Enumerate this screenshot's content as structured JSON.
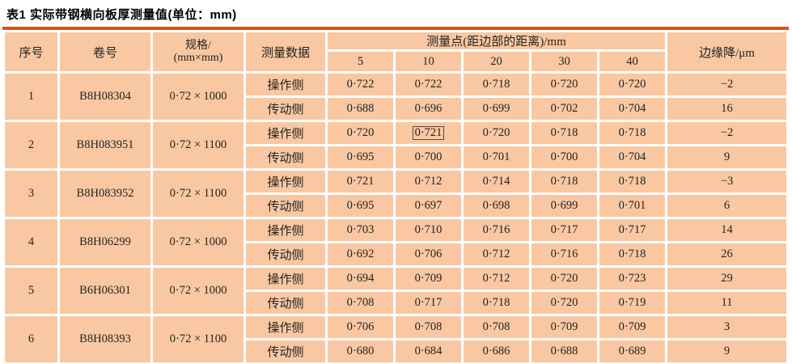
{
  "title": "表1  实际带钢横向板厚测量值(单位：mm)",
  "colors": {
    "cell_background": "#f9c8a2",
    "top_rule": "#d2571c",
    "bottom_rule": "#ed6c1e",
    "separator": "#ffffff",
    "text": "#222222"
  },
  "table": {
    "headers": {
      "serial": "序号",
      "coil": "卷号",
      "spec_line1": "规格/",
      "spec_line2": "(mm×mm)",
      "measure_data": "测量数据",
      "points_group": "测量点(距边部的距离)/mm",
      "points": [
        "5",
        "10",
        "20",
        "30",
        "40"
      ],
      "edge_drop": "边缘降/μm"
    },
    "rows": [
      {
        "serial": "1",
        "coil": "B8H08304",
        "spec": "0·72 × 1000",
        "sides": [
          {
            "label": "操作侧",
            "values": [
              "0·722",
              "0·722",
              "0·718",
              "0·720",
              "0·720"
            ],
            "boxed_col": -1,
            "edge_drop": "−2"
          },
          {
            "label": "传动侧",
            "values": [
              "0·688",
              "0·696",
              "0·699",
              "0·702",
              "0·704"
            ],
            "boxed_col": -1,
            "edge_drop": "16"
          }
        ]
      },
      {
        "serial": "2",
        "coil": "B8H083951",
        "spec": "0·72 × 1100",
        "sides": [
          {
            "label": "操作侧",
            "values": [
              "0·720",
              "0·721",
              "0·720",
              "0·718",
              "0·718"
            ],
            "boxed_col": 1,
            "edge_drop": "−2"
          },
          {
            "label": "传动侧",
            "values": [
              "0·695",
              "0·700",
              "0·701",
              "0·700",
              "0·704"
            ],
            "boxed_col": -1,
            "edge_drop": "9"
          }
        ]
      },
      {
        "serial": "3",
        "coil": "B8H083952",
        "spec": "0·72 × 1100",
        "sides": [
          {
            "label": "操作侧",
            "values": [
              "0·721",
              "0·712",
              "0·714",
              "0·718",
              "0·718"
            ],
            "boxed_col": -1,
            "edge_drop": "−3"
          },
          {
            "label": "传动侧",
            "values": [
              "0·695",
              "0·697",
              "0·698",
              "0·699",
              "0·701"
            ],
            "boxed_col": -1,
            "edge_drop": "6"
          }
        ]
      },
      {
        "serial": "4",
        "coil": "B8H06299",
        "spec": "0·72 × 1000",
        "sides": [
          {
            "label": "操作侧",
            "values": [
              "0·703",
              "0·710",
              "0·716",
              "0·717",
              "0·717"
            ],
            "boxed_col": -1,
            "edge_drop": "14"
          },
          {
            "label": "传动侧",
            "values": [
              "0·692",
              "0·706",
              "0·712",
              "0·716",
              "0·718"
            ],
            "boxed_col": -1,
            "edge_drop": "26"
          }
        ]
      },
      {
        "serial": "5",
        "coil": "B6H06301",
        "spec": "0·72 × 1000",
        "sides": [
          {
            "label": "操作侧",
            "values": [
              "0·694",
              "0·709",
              "0·712",
              "0·720",
              "0·723"
            ],
            "boxed_col": -1,
            "edge_drop": "29"
          },
          {
            "label": "传动侧",
            "values": [
              "0·708",
              "0·717",
              "0·718",
              "0·720",
              "0·719"
            ],
            "boxed_col": -1,
            "edge_drop": "11"
          }
        ]
      },
      {
        "serial": "6",
        "coil": "B8H08393",
        "spec": "0·72 × 1100",
        "sides": [
          {
            "label": "操作侧",
            "values": [
              "0·706",
              "0·708",
              "0·708",
              "0·709",
              "0·709"
            ],
            "boxed_col": -1,
            "edge_drop": "3"
          },
          {
            "label": "传动侧",
            "values": [
              "0·680",
              "0·684",
              "0·686",
              "0·688",
              "0·689"
            ],
            "boxed_col": -1,
            "edge_drop": "9"
          }
        ]
      }
    ]
  }
}
